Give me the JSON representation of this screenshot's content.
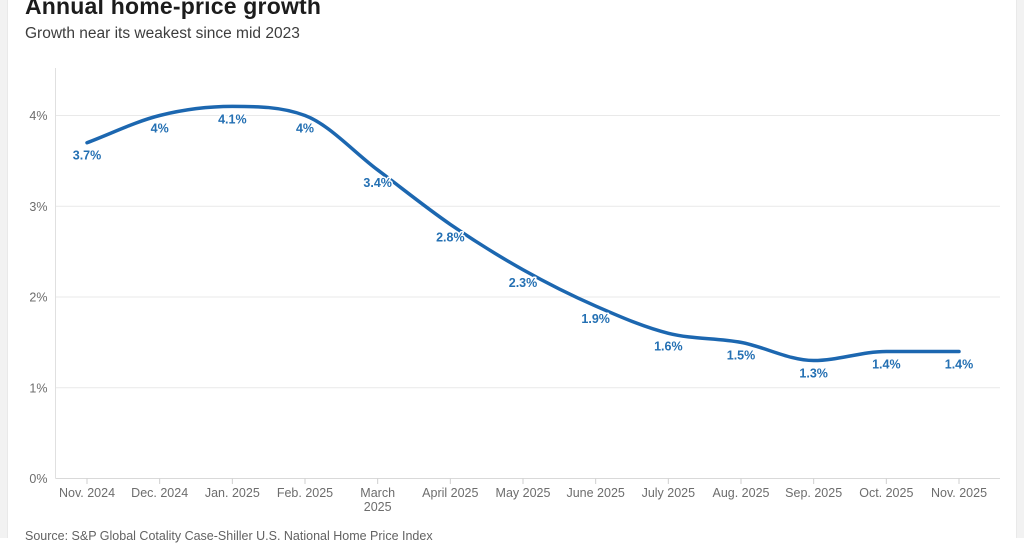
{
  "header": {
    "title": "Annual home-price growth",
    "subtitle": "Growth near its weakest since mid 2023"
  },
  "source": "Source: S&P Global Cotality Case-Shiller U.S. National Home Price Index",
  "colors": {
    "line": "#1c67b0",
    "point_label": "#2470b3",
    "grid": "#e9e9e9",
    "baseline": "#d9d9d9",
    "axis_line": "#e0e0e0",
    "tick": "#cfcfcf",
    "axis_text": "#6d6d6d"
  },
  "chart_data": {
    "type": "line",
    "title": "Annual home-price growth",
    "subtitle": "Growth near its weakest since mid 2023",
    "categories": [
      "Nov. 2024",
      "Dec. 2024",
      "Jan. 2025",
      "Feb. 2025",
      "March 2025",
      "April 2025",
      "May 2025",
      "June 2025",
      "July 2025",
      "Aug. 2025",
      "Sep. 2025",
      "Oct. 2025",
      "Nov. 2025"
    ],
    "values": [
      3.7,
      4.0,
      4.1,
      4.0,
      3.4,
      2.8,
      2.3,
      1.9,
      1.6,
      1.5,
      1.3,
      1.4,
      1.4
    ],
    "point_labels": [
      "3.7%",
      "4%",
      "4.1%",
      "4%",
      "3.4%",
      "2.8%",
      "2.3%",
      "1.9%",
      "1.6%",
      "1.5%",
      "1.3%",
      "1.4%",
      "1.4%"
    ],
    "y_ticks": [
      0,
      1,
      2,
      3,
      4
    ],
    "y_tick_labels": [
      "0%",
      "1%",
      "2%",
      "3%",
      "4%"
    ],
    "ylim": [
      0,
      4.5
    ],
    "xlabel": "",
    "ylabel": "",
    "grid": true,
    "legend": "none",
    "smoothed": true
  }
}
